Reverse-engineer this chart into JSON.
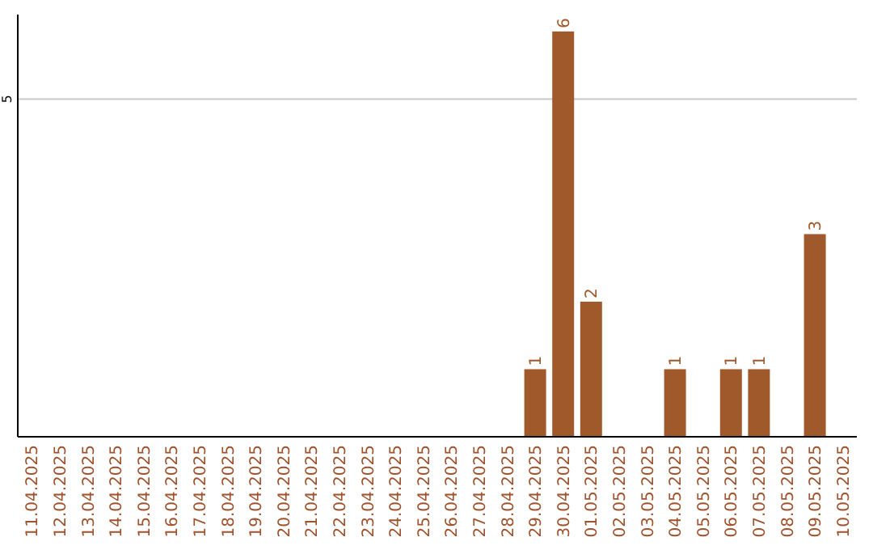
{
  "chart_data": {
    "type": "bar",
    "categories": [
      "11.04.2025",
      "12.04.2025",
      "13.04.2025",
      "14.04.2025",
      "15.04.2025",
      "16.04.2025",
      "17.04.2025",
      "18.04.2025",
      "19.04.2025",
      "20.04.2025",
      "21.04.2025",
      "22.04.2025",
      "23.04.2025",
      "24.04.2025",
      "25.04.2025",
      "26.04.2025",
      "27.04.2025",
      "28.04.2025",
      "29.04.2025",
      "30.04.2025",
      "01.05.2025",
      "02.05.2025",
      "03.05.2025",
      "04.05.2025",
      "05.05.2025",
      "06.05.2025",
      "07.05.2025",
      "08.05.2025",
      "09.05.2025",
      "10.05.2025"
    ],
    "values": [
      null,
      null,
      null,
      null,
      null,
      null,
      null,
      null,
      null,
      null,
      null,
      null,
      null,
      null,
      null,
      null,
      null,
      null,
      1,
      6,
      2,
      null,
      null,
      1,
      null,
      1,
      1,
      null,
      3,
      null
    ],
    "data_labels": true,
    "color": "#a0592a",
    "ylim": [
      0,
      6.25
    ],
    "ref_lines": [
      {
        "axis": "y",
        "value": 5,
        "label": "5",
        "color": "#c8c8c8"
      }
    ]
  }
}
